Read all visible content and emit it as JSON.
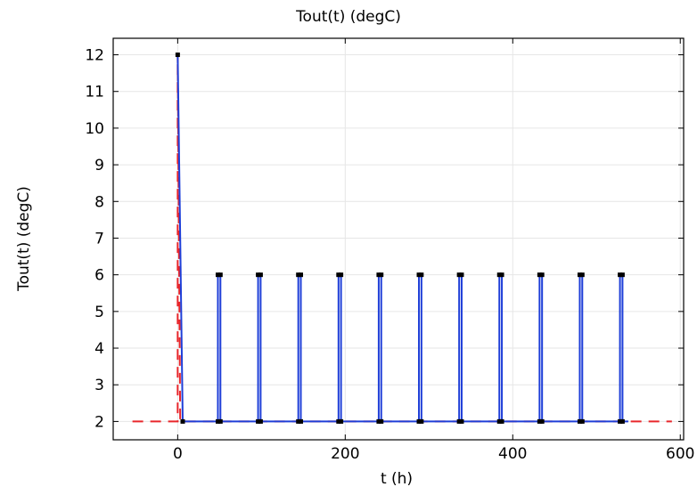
{
  "chart_data": {
    "type": "line",
    "title": "Tout(t) (degC)",
    "xlabel": "t (h)",
    "ylabel": "Tout(t) (degC)",
    "xlim": [
      -77,
      604
    ],
    "ylim": [
      1.5,
      12.45
    ],
    "xticks": [
      0,
      200,
      400,
      600
    ],
    "yticks": [
      2,
      3,
      4,
      5,
      6,
      7,
      8,
      9,
      10,
      11,
      12
    ],
    "grid": true,
    "colors": {
      "interpolated": "#e8262b",
      "output": "#1f3fd8",
      "markers": "#000000"
    },
    "series": [
      {
        "style": "dashed",
        "color": "#e8262b",
        "x": [
          -54,
          0,
          0,
          3,
          538,
          590
        ],
        "y": [
          2,
          2,
          12,
          2,
          2,
          2
        ]
      },
      {
        "style": "solid",
        "color": "#1f3fd8",
        "x": [
          0,
          6,
          48,
          48,
          51,
          51,
          96,
          96,
          99,
          99,
          144,
          144,
          147,
          147,
          192,
          192,
          195,
          195,
          240,
          240,
          243,
          243,
          288,
          288,
          291,
          291,
          336,
          336,
          339,
          339,
          384,
          384,
          387,
          387,
          432,
          432,
          435,
          435,
          480,
          480,
          483,
          483,
          528,
          528,
          531,
          531,
          538
        ],
        "y": [
          12,
          2,
          2,
          6,
          6,
          2,
          2,
          6,
          6,
          2,
          2,
          6,
          6,
          2,
          2,
          6,
          6,
          2,
          2,
          6,
          6,
          2,
          2,
          6,
          6,
          2,
          2,
          6,
          6,
          2,
          2,
          6,
          6,
          2,
          2,
          6,
          6,
          2,
          2,
          6,
          6,
          2,
          2,
          6,
          6,
          2,
          2
        ]
      }
    ],
    "markers": {
      "x": [
        0,
        6,
        48,
        51,
        96,
        99,
        144,
        147,
        192,
        195,
        240,
        243,
        288,
        291,
        336,
        339,
        384,
        387,
        432,
        435,
        480,
        483,
        528,
        531,
        48,
        51,
        96,
        99,
        144,
        147,
        192,
        195,
        240,
        243,
        288,
        291,
        336,
        339,
        384,
        387,
        432,
        435,
        480,
        483,
        528,
        531
      ],
      "y": [
        12,
        2,
        2,
        2,
        2,
        2,
        2,
        2,
        2,
        2,
        2,
        2,
        2,
        2,
        2,
        2,
        2,
        2,
        2,
        2,
        2,
        2,
        2,
        2,
        6,
        6,
        6,
        6,
        6,
        6,
        6,
        6,
        6,
        6,
        6,
        6,
        6,
        6,
        6,
        6,
        6,
        6,
        6,
        6,
        6,
        6
      ]
    }
  }
}
